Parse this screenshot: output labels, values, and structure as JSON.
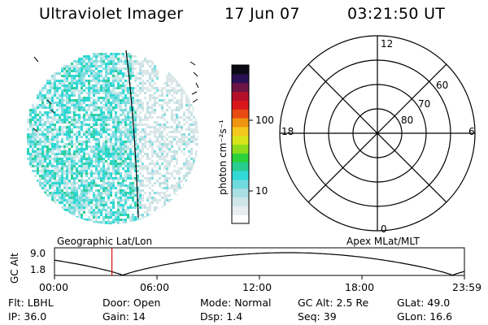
{
  "header": {
    "title": "Ultraviolet Imager",
    "date": "17 Jun 07",
    "time": "03:21:50 UT"
  },
  "colorbar": {
    "unit_label": "photon cm⁻²s⁻¹",
    "tick_high": "100",
    "tick_low": "10",
    "colors": [
      "#ffffff",
      "#e6eef0",
      "#cfe5e8",
      "#a9dfe3",
      "#6fdbe0",
      "#30d8d6",
      "#27cc8f",
      "#2bd23b",
      "#8edc1b",
      "#d8e41a",
      "#f4c81f",
      "#ee9510",
      "#e94a12",
      "#d9161b",
      "#b4102a",
      "#6c1446",
      "#2a1054",
      "#0a0a14"
    ]
  },
  "geo_panel": {
    "label": "Geographic Lat/Lon"
  },
  "polar_panel": {
    "label": "Apex  MLat/MLT",
    "mlt_labels": {
      "top": "12",
      "left": "18",
      "right": "6",
      "bottom": "0"
    },
    "lat_labels": [
      "60",
      "70",
      "80"
    ]
  },
  "orbit_plot": {
    "ylabel": "GC Alt",
    "y_ticks": [
      "9.0",
      "1.8"
    ],
    "x_ticks": [
      "00:00",
      "06:00",
      "12:00",
      "18:00",
      "23:59"
    ],
    "current_time_hours": 3.36
  },
  "status": {
    "row1": [
      {
        "key": "Flt:",
        "value": "LBHL"
      },
      {
        "key": "Door:",
        "value": "Open"
      },
      {
        "key": "Mode:",
        "value": "Normal"
      },
      {
        "key": "GC Alt:",
        "value": "2.5 Re"
      },
      {
        "key": "GLat:",
        "value": "49.0"
      }
    ],
    "row2": [
      {
        "key": "IP:",
        "value": "36.0"
      },
      {
        "key": "Gain:",
        "value": "14"
      },
      {
        "key": "Dsp:",
        "value": "1.4"
      },
      {
        "key": "Seq:",
        "value": "39"
      },
      {
        "key": "GLon:",
        "value": "16.6"
      }
    ]
  }
}
